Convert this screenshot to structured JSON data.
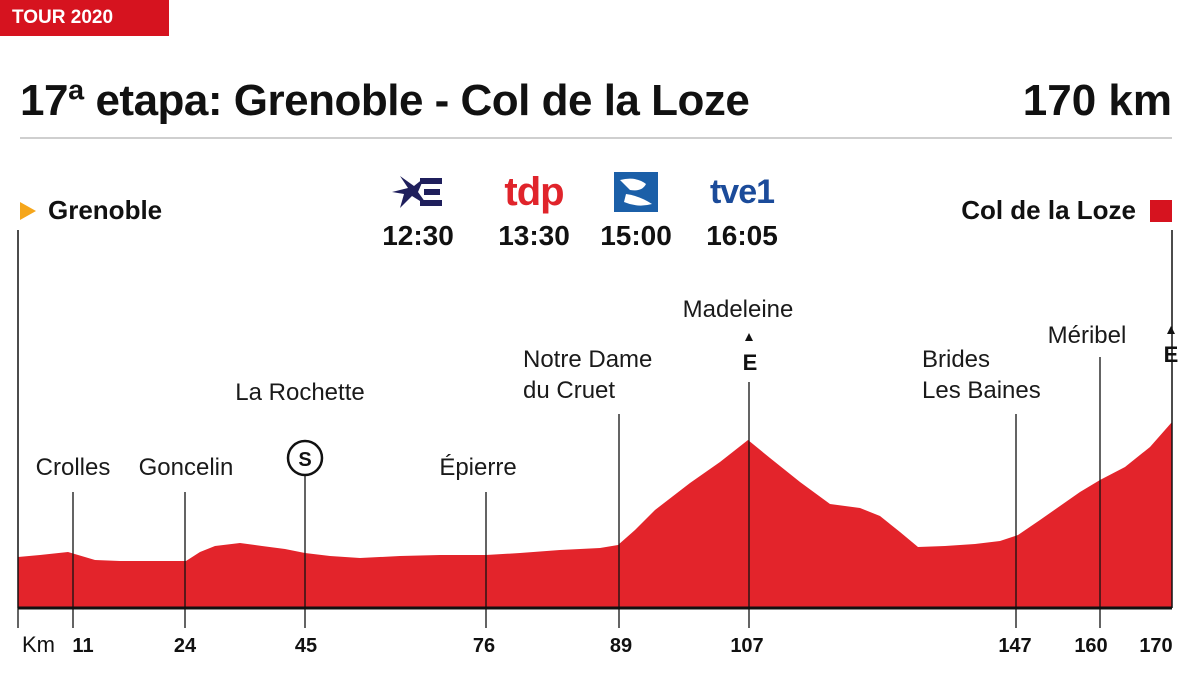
{
  "header": {
    "tag": "TOUR 2020",
    "title": "17ª etapa: Grenoble - Col de la Loze",
    "distance": "170 km"
  },
  "start": {
    "name": "Grenoble",
    "marker_color": "#f5a61b"
  },
  "finish": {
    "name": "Col de la Loze",
    "marker_color": "#d6131f"
  },
  "broadcasts": [
    {
      "logo": "eurosport-icon",
      "time": "12:30"
    },
    {
      "logo": "tdp",
      "time": "13:30"
    },
    {
      "logo": "gol-icon",
      "time": "15:00"
    },
    {
      "logo": "tve1",
      "time": "16:05"
    }
  ],
  "profile": {
    "fill_color": "#e3242b",
    "axis_label": "Km",
    "max_km": 170,
    "points": [
      {
        "km": 11,
        "name": "Crolles"
      },
      {
        "km": 24,
        "name": "Goncelin"
      },
      {
        "km": 45,
        "name": "La Rochette",
        "badge": "S"
      },
      {
        "km": 76,
        "name": "Épierre"
      },
      {
        "km": 89,
        "name_lines": [
          "Notre Dame",
          "du Cruet"
        ]
      },
      {
        "km": 107,
        "name": "Madeleine",
        "mark": "E"
      },
      {
        "km": 147,
        "name_lines": [
          "Brides",
          "Les Baines"
        ]
      },
      {
        "km": 160,
        "name": "Méribel"
      },
      {
        "km": 170,
        "mark": "E"
      }
    ]
  }
}
